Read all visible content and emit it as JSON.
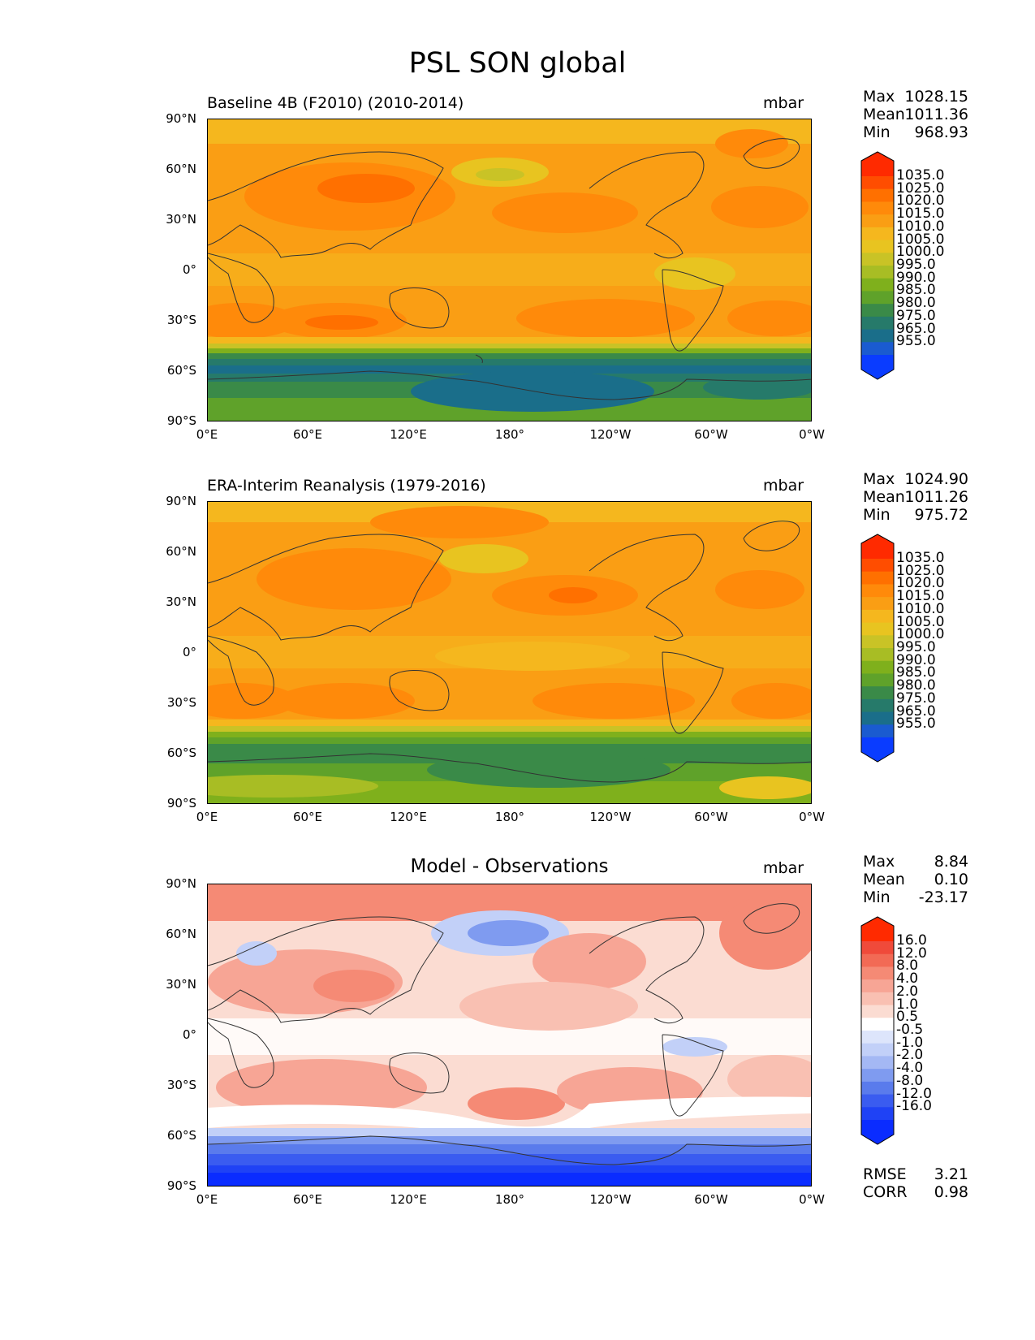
{
  "figure": {
    "title": "PSL SON global"
  },
  "axes": {
    "lat_labels": [
      "90°N",
      "60°N",
      "30°N",
      "0°",
      "30°S",
      "60°S",
      "90°S"
    ],
    "lon_labels": [
      "0°E",
      "60°E",
      "120°E",
      "180°",
      "120°W",
      "60°W",
      "0°W"
    ]
  },
  "panels": [
    {
      "title": "Baseline 4B (F2010) (2010-2014)",
      "units": "mbar",
      "stats": [
        {
          "label": "Max",
          "value": "1028.15"
        },
        {
          "label": "Mean",
          "value": "1011.36"
        },
        {
          "label": "Min",
          "value": "968.93"
        }
      ],
      "colorbar": {
        "labels": [
          "1035.0",
          "1025.0",
          "1020.0",
          "1015.0",
          "1010.0",
          "1005.0",
          "1000.0",
          "995.0",
          "990.0",
          "985.0",
          "980.0",
          "975.0",
          "965.0",
          "955.0"
        ],
        "colors": [
          "#ff2a00",
          "#ff4d00",
          "#ff7000",
          "#ff8a0a",
          "#fa9e14",
          "#f5b71e",
          "#e8c420",
          "#c9c326",
          "#a8bd24",
          "#7fb01c",
          "#5fa22a",
          "#3a8a48",
          "#267a6a",
          "#1a6e8a",
          "#1a5bd0",
          "#0a3cff"
        ]
      },
      "chart_data": {
        "type": "map",
        "variable": "PSL",
        "season": "SON",
        "units": "mbar",
        "lat_range": [
          -90,
          90
        ],
        "lon_range": [
          0,
          360
        ],
        "max": 1028.15,
        "mean": 1011.36,
        "min": 968.93
      }
    },
    {
      "title": "ERA-Interim Reanalysis (1979-2016)",
      "units": "mbar",
      "stats": [
        {
          "label": "Max",
          "value": "1024.90"
        },
        {
          "label": "Mean",
          "value": "1011.26"
        },
        {
          "label": "Min",
          "value": "975.72"
        }
      ],
      "colorbar": {
        "labels": [
          "1035.0",
          "1025.0",
          "1020.0",
          "1015.0",
          "1010.0",
          "1005.0",
          "1000.0",
          "995.0",
          "990.0",
          "985.0",
          "980.0",
          "975.0",
          "965.0",
          "955.0"
        ],
        "colors": [
          "#ff2a00",
          "#ff4d00",
          "#ff7000",
          "#ff8a0a",
          "#fa9e14",
          "#f5b71e",
          "#e8c420",
          "#c9c326",
          "#a8bd24",
          "#7fb01c",
          "#5fa22a",
          "#3a8a48",
          "#267a6a",
          "#1a6e8a",
          "#1a5bd0",
          "#0a3cff"
        ]
      },
      "chart_data": {
        "type": "map",
        "variable": "PSL",
        "season": "SON",
        "units": "mbar",
        "lat_range": [
          -90,
          90
        ],
        "lon_range": [
          0,
          360
        ],
        "max": 1024.9,
        "mean": 1011.26,
        "min": 975.72
      }
    },
    {
      "title": "Model - Observations",
      "units": "mbar",
      "stats": [
        {
          "label": "Max",
          "value": "8.84"
        },
        {
          "label": "Mean",
          "value": "0.10"
        },
        {
          "label": "Min",
          "value": "-23.17"
        }
      ],
      "colorbar": {
        "labels": [
          "16.0",
          "12.0",
          "8.0",
          "4.0",
          "2.0",
          "1.0",
          "0.5",
          "-0.5",
          "-1.0",
          "-2.0",
          "-4.0",
          "-8.0",
          "-12.0",
          "-16.0"
        ],
        "colors": [
          "#ff2a00",
          "#f04a3a",
          "#f26a55",
          "#f58a75",
          "#f7a595",
          "#f9c0b2",
          "#fbdcd2",
          "#ffffff",
          "#dde5fb",
          "#c2d0f8",
          "#a4b8f4",
          "#7f9bf0",
          "#5a7bec",
          "#3a5cf0",
          "#1f42f5",
          "#0a2cff"
        ]
      },
      "chart_data": {
        "type": "map",
        "variable": "PSL difference",
        "season": "SON",
        "units": "mbar",
        "lat_range": [
          -90,
          90
        ],
        "lon_range": [
          0,
          360
        ],
        "max": 8.84,
        "mean": 0.1,
        "min": -23.17
      },
      "extra_stats": [
        {
          "label": "RMSE",
          "value": "3.21"
        },
        {
          "label": "CORR",
          "value": "0.98"
        }
      ]
    }
  ]
}
